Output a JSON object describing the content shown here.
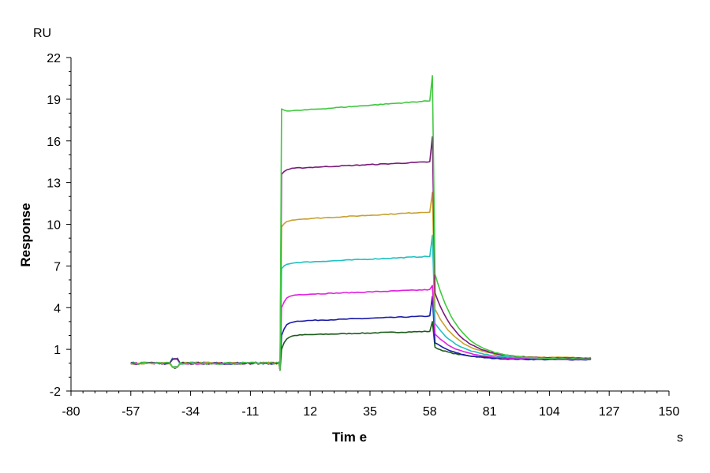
{
  "chart_data": {
    "type": "line",
    "title": "",
    "xlabel": "Tim e",
    "xunit": "s",
    "ylabel": "Response",
    "yunit": "RU",
    "xlim": [
      -80,
      150
    ],
    "ylim": [
      -2,
      22
    ],
    "xticks": [
      -80,
      -57,
      -34,
      -11,
      12,
      35,
      58,
      81,
      104,
      127,
      150
    ],
    "yticks": [
      -2,
      1,
      4,
      7,
      10,
      13,
      16,
      19,
      22
    ],
    "grid": false,
    "legend": "none",
    "series": [
      {
        "color": "#1a5c1a",
        "injection_start_value": 1.0,
        "plateau_start": 2.0,
        "plateau_end": 2.3,
        "end_spike": 3.0,
        "dissociation_end": 0.35
      },
      {
        "color": "#1a1aa8",
        "injection_start_value": 2.0,
        "plateau_start": 3.0,
        "plateau_end": 3.4,
        "end_spike": 4.8,
        "dissociation_end": 0.25
      },
      {
        "color": "#e020e0",
        "injection_start_value": 4.0,
        "plateau_start": 4.9,
        "plateau_end": 5.3,
        "end_spike": 5.6,
        "dissociation_end": 0.3
      },
      {
        "color": "#20c0c0",
        "injection_start_value": 6.8,
        "plateau_start": 7.2,
        "plateau_end": 7.7,
        "end_spike": 9.2,
        "dissociation_end": 0.35
      },
      {
        "color": "#c8a030",
        "injection_start_value": 9.8,
        "plateau_start": 10.3,
        "plateau_end": 10.9,
        "end_spike": 12.3,
        "dissociation_end": 0.4
      },
      {
        "color": "#7a1a7a",
        "injection_start_value": 13.6,
        "plateau_start": 14.0,
        "plateau_end": 14.5,
        "end_spike": 16.3,
        "dissociation_end": 0.35
      },
      {
        "color": "#40c840",
        "injection_start_value": 18.3,
        "plateau_start": 18.1,
        "plateau_end": 18.9,
        "end_spike": 20.7,
        "dissociation_end": 0.3
      }
    ],
    "baseline_range": [
      -57,
      0
    ],
    "association_range": [
      1,
      59
    ],
    "dissociation_range": [
      60,
      120
    ]
  }
}
